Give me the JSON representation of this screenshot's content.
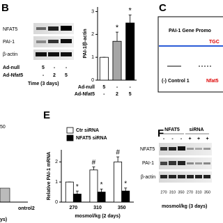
{
  "panels": {
    "b": {
      "letter": "B",
      "blot_rows": [
        "NFAT5",
        "PAI-1",
        "β-actin"
      ],
      "table": [
        {
          "label": "Ad-null",
          "cells": [
            "5",
            "-",
            "-"
          ]
        },
        {
          "label": "Ad-Nfat5",
          "cells": [
            "-",
            "2",
            "5"
          ]
        }
      ],
      "time": "Time (3 days)"
    },
    "c": {
      "letter": "C",
      "title": "PAI-1 Gene Promo",
      "site": "TGC",
      "control": "(-) Control 1",
      "primer": "Nfat5"
    },
    "fragments": [
      "50",
      "ontrol2",
      "ys)"
    ],
    "e": {
      "letter": "E"
    },
    "f": {
      "letter": "F",
      "groups": [
        "NFAT5",
        "siRNA"
      ],
      "signs": [
        "-",
        "-",
        "-",
        "+",
        "+",
        "+"
      ],
      "blot_rows": [
        "NFAT5",
        "PAI-1",
        "β-actin"
      ],
      "lanes": [
        "270",
        "310",
        "350",
        "270",
        "310",
        "350"
      ],
      "xlabel": "mosmol/kg (3 days)"
    }
  },
  "chart_data": [
    {
      "type": "bar",
      "ylabel": "PAI-1/β-actin",
      "categories": [
        null,
        null,
        null
      ],
      "values": [
        1,
        1.7,
        2.5
      ],
      "errors": [
        0,
        0.4,
        0.35
      ],
      "colors": [
        "#ffffff",
        "#a6a6a6",
        "#000000"
      ],
      "annotations": [
        null,
        "*",
        "*"
      ],
      "x_table": [
        {
          "label": "Ad-null",
          "cells": [
            "5",
            "-",
            "-"
          ]
        },
        {
          "label": "Ad-Nfat5",
          "cells": [
            "-",
            "2",
            "5"
          ]
        }
      ],
      "ylim": [
        0,
        3.2
      ],
      "yticks": [
        0,
        1,
        2,
        3
      ]
    },
    {
      "type": "grouped-bar",
      "ylabel": "Relative PAI-1 mRNA",
      "xlabel": "mosmol/kg (2 days)",
      "categories": [
        "270",
        "310",
        "350"
      ],
      "series": [
        {
          "name": "Ctr siRNA",
          "color": "#ffffff",
          "values": [
            1,
            1.6,
            2.0
          ],
          "errors": [
            0,
            0.15,
            0.25
          ],
          "annotations": [
            null,
            "#",
            "#"
          ]
        },
        {
          "name": "NFAT5 siRNA",
          "color": "#000000",
          "values": [
            0.4,
            0.5,
            0.55
          ],
          "errors": [
            0.15,
            0.15,
            0.15
          ],
          "annotations": [
            "*",
            "*",
            "*"
          ]
        }
      ],
      "ylim": [
        0,
        2.6
      ],
      "yticks": [
        0,
        1,
        2
      ]
    }
  ]
}
